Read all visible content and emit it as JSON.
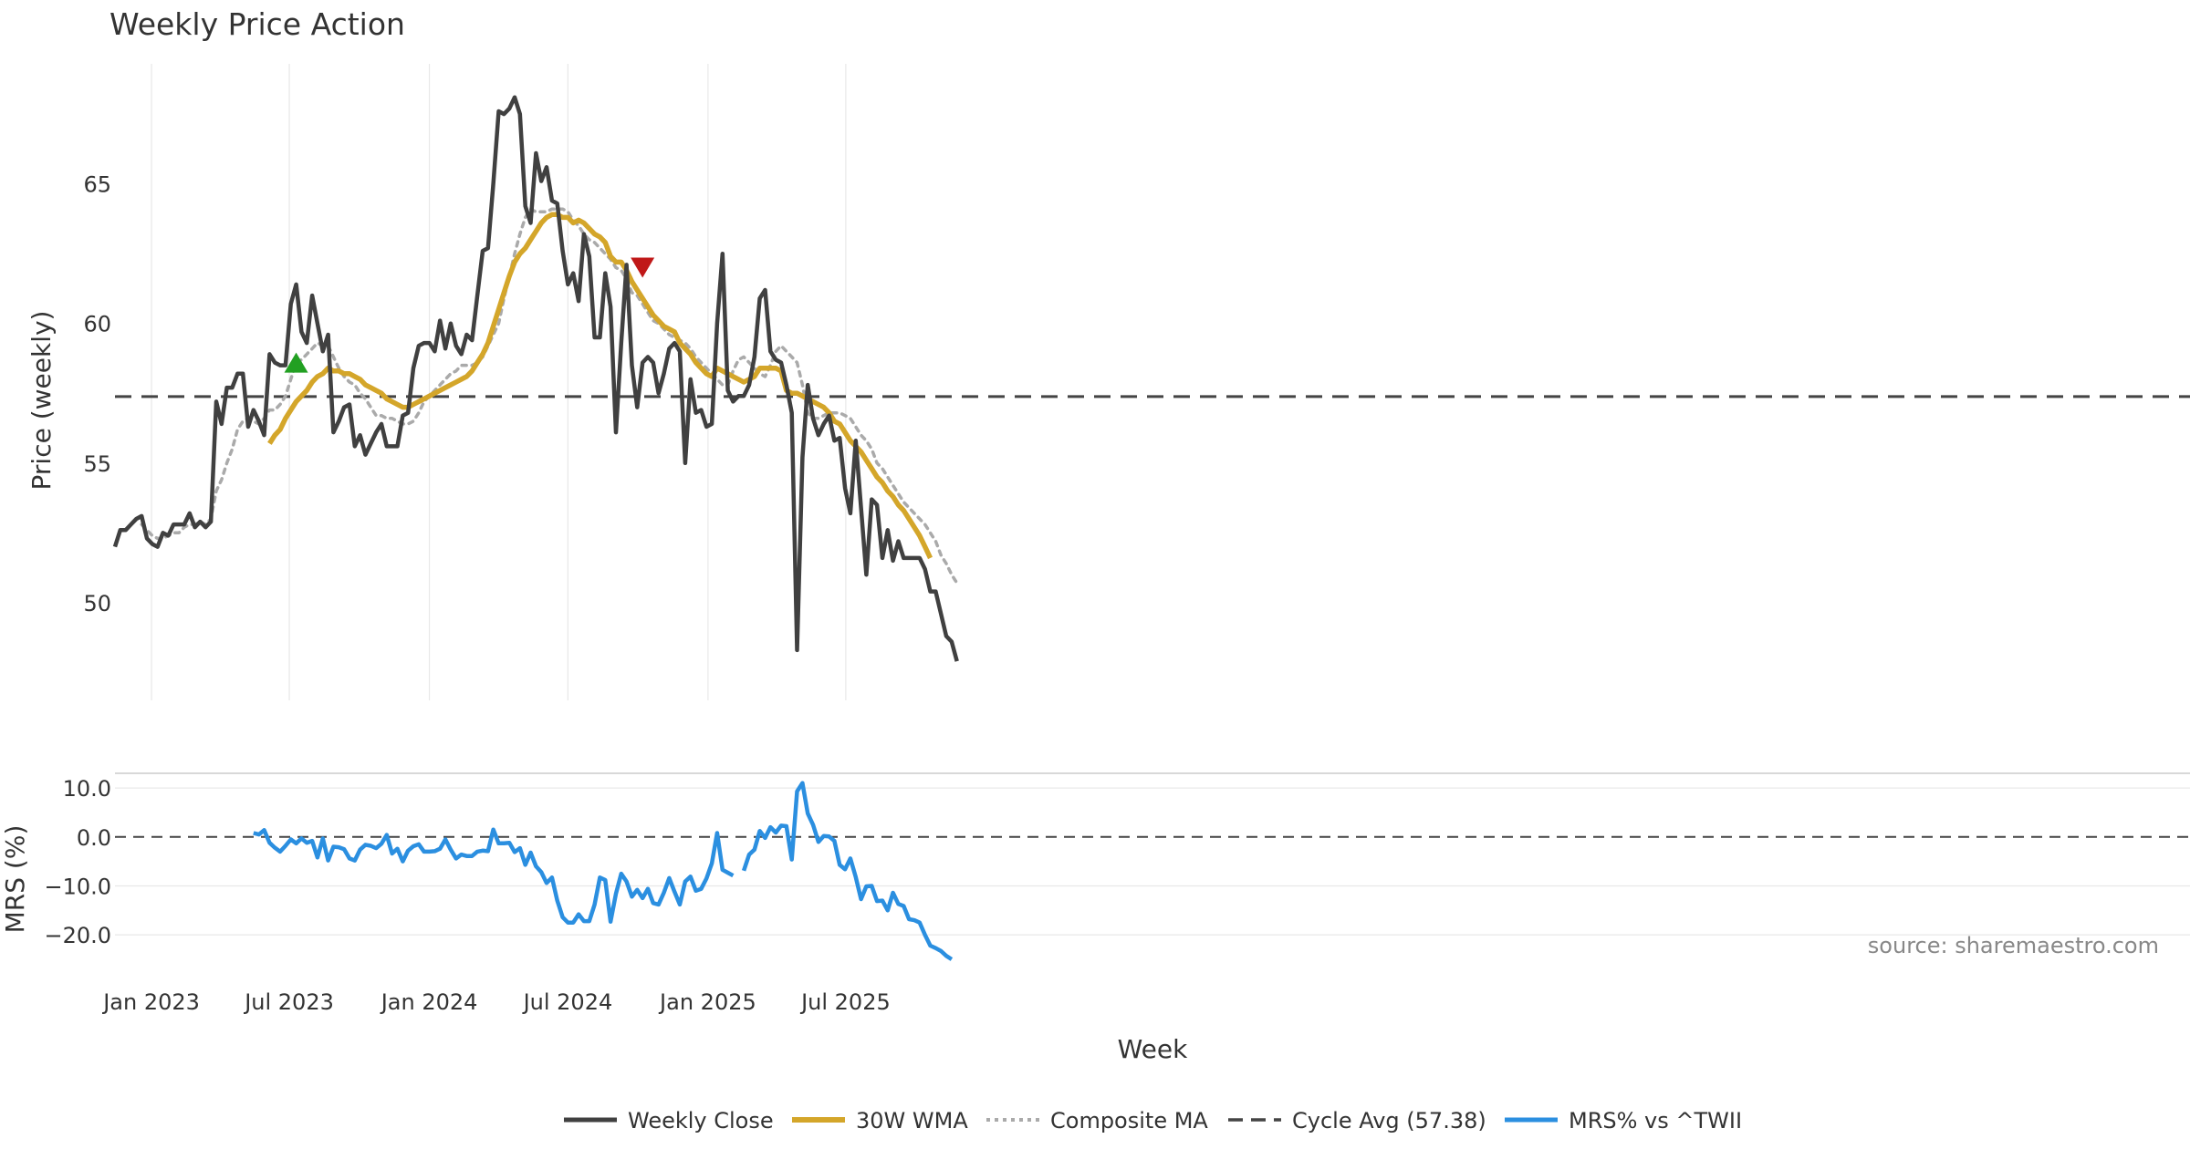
{
  "title": "Weekly Price Action",
  "source": "source: sharemaestro.com",
  "xlabel": "Week",
  "colors": {
    "close": "#404040",
    "wma": "#d4a62a",
    "composite": "#aaaaaa",
    "cycle": "#444444",
    "mrs": "#2b8fe0",
    "buy": "#22a022",
    "sell": "#c01818",
    "grid": "#e8e8e8",
    "text": "#333333",
    "source_text": "#888888"
  },
  "chart_data": {
    "type": "line",
    "x_axis": {
      "label": "Week",
      "start_date": "2022-11-14",
      "tick_labels": [
        "Jan 2023",
        "Jul 2023",
        "Jan 2024",
        "Jul 2024",
        "Jan 2025",
        "Jul 2025"
      ],
      "tick_dates": [
        "2023-01-01",
        "2023-07-01",
        "2024-01-01",
        "2024-07-01",
        "2025-01-01",
        "2025-07-01"
      ]
    },
    "price_panel": {
      "ylabel": "Price (weekly)",
      "ylim": [
        46.5,
        69.3
      ],
      "yticks": [
        50,
        55,
        60,
        65
      ],
      "cycle_avg": 57.38,
      "series": [
        {
          "name": "Weekly Close",
          "key": "close",
          "start_index": 0,
          "values": [
            52.0,
            52.6,
            52.6,
            52.8,
            53.0,
            53.1,
            52.3,
            52.1,
            52.0,
            52.5,
            52.4,
            52.8,
            52.8,
            52.8,
            53.2,
            52.7,
            52.9,
            52.7,
            52.9,
            57.2,
            56.4,
            57.7,
            57.7,
            58.2,
            58.2,
            56.3,
            56.9,
            56.5,
            56.0,
            58.9,
            58.6,
            58.5,
            58.5,
            60.7,
            61.4,
            59.7,
            59.3,
            61.0,
            60.0,
            59.0,
            59.6,
            56.1,
            56.5,
            57.0,
            57.1,
            55.6,
            56.0,
            55.3,
            55.7,
            56.1,
            56.4,
            55.6,
            55.6,
            55.6,
            56.7,
            56.8,
            58.4,
            59.2,
            59.3,
            59.3,
            59.0,
            60.1,
            59.1,
            60.0,
            59.2,
            58.9,
            59.6,
            59.4,
            61.0,
            62.6,
            62.7,
            65.0,
            67.6,
            67.5,
            67.7,
            68.1,
            67.5,
            64.2,
            63.6,
            66.1,
            65.1,
            65.6,
            64.4,
            64.3,
            62.6,
            61.4,
            61.8,
            60.8,
            63.2,
            62.4,
            59.5,
            59.5,
            61.8,
            60.6,
            56.1,
            59.3,
            62.1,
            58.5,
            57.0,
            58.6,
            58.8,
            58.6,
            57.5,
            58.2,
            59.1,
            59.3,
            59.0,
            55.0,
            58.0,
            56.8,
            56.9,
            56.3,
            56.4,
            60.0,
            62.5,
            57.6,
            57.2,
            57.4,
            57.4,
            57.8,
            58.8,
            60.9,
            61.2,
            59.0,
            58.7,
            58.6,
            57.8,
            56.8,
            48.3,
            55.2,
            57.8,
            56.6,
            56.0,
            56.4,
            56.7,
            55.8,
            55.9,
            54.1,
            53.2,
            55.8,
            53.4,
            51.0,
            53.7,
            53.5,
            51.6,
            52.6,
            51.5,
            52.2,
            51.6,
            51.6,
            51.6,
            51.6,
            51.2,
            50.4,
            50.4,
            49.6,
            48.8,
            48.6,
            47.9
          ]
        },
        {
          "name": "30W WMA",
          "key": "wma",
          "start_index": 29,
          "values": [
            55.7,
            56.0,
            56.2,
            56.6,
            56.9,
            57.2,
            57.4,
            57.6,
            57.9,
            58.1,
            58.2,
            58.4,
            58.3,
            58.3,
            58.2,
            58.2,
            58.1,
            58.0,
            57.8,
            57.7,
            57.6,
            57.5,
            57.3,
            57.2,
            57.1,
            57.0,
            57.0,
            57.1,
            57.2,
            57.3,
            57.4,
            57.5,
            57.6,
            57.7,
            57.8,
            57.9,
            58.0,
            58.1,
            58.3,
            58.6,
            58.9,
            59.3,
            59.9,
            60.5,
            61.1,
            61.7,
            62.2,
            62.5,
            62.7,
            63.0,
            63.3,
            63.6,
            63.8,
            63.9,
            63.9,
            63.8,
            63.8,
            63.6,
            63.7,
            63.6,
            63.4,
            63.2,
            63.1,
            62.9,
            62.4,
            62.2,
            62.2,
            61.9,
            61.5,
            61.2,
            60.9,
            60.6,
            60.3,
            60.1,
            59.9,
            59.8,
            59.7,
            59.3,
            59.1,
            58.9,
            58.6,
            58.4,
            58.2,
            58.1,
            58.4,
            58.3,
            58.2,
            58.1,
            58.0,
            57.9,
            58.0,
            58.1,
            58.4,
            58.4,
            58.4,
            58.4,
            58.3,
            57.6,
            57.5,
            57.5,
            57.4,
            57.3,
            57.2,
            57.1,
            57.0,
            56.8,
            56.5,
            56.4,
            56.1,
            55.8,
            55.6,
            55.4,
            55.1,
            54.8,
            54.5,
            54.3,
            54.0,
            53.8,
            53.5,
            53.3,
            53.0,
            52.7,
            52.4,
            52.0,
            51.6
          ]
        },
        {
          "name": "Composite MA",
          "key": "composite",
          "start_index": 5,
          "values": [
            52.8,
            52.6,
            52.4,
            52.3,
            52.3,
            52.4,
            52.5,
            52.5,
            52.7,
            52.8,
            52.8,
            52.9,
            52.8,
            53.0,
            54.0,
            54.4,
            55.0,
            55.5,
            56.2,
            56.5,
            56.6,
            56.5,
            56.4,
            56.6,
            56.9,
            56.9,
            57.1,
            57.4,
            58.0,
            58.6,
            58.7,
            58.9,
            59.1,
            59.3,
            59.2,
            59.2,
            58.8,
            58.4,
            58.1,
            57.9,
            57.8,
            57.5,
            57.3,
            57.0,
            56.7,
            56.7,
            56.6,
            56.6,
            56.5,
            56.4,
            56.4,
            56.5,
            56.8,
            57.2,
            57.4,
            57.6,
            57.8,
            58.0,
            58.2,
            58.3,
            58.5,
            58.5,
            58.5,
            58.6,
            58.8,
            59.2,
            59.6,
            60.0,
            60.9,
            61.7,
            62.5,
            63.2,
            63.8,
            64.1,
            64.0,
            64.0,
            64.0,
            64.1,
            64.1,
            64.1,
            64.0,
            63.7,
            63.5,
            63.2,
            63.0,
            62.9,
            62.7,
            62.5,
            62.3,
            62.0,
            61.9,
            61.6,
            61.1,
            61.0,
            60.7,
            60.4,
            60.1,
            60.0,
            59.8,
            59.6,
            59.5,
            59.4,
            59.3,
            59.1,
            58.8,
            58.6,
            58.4,
            58.2,
            58.0,
            57.8,
            57.8,
            58.3,
            58.7,
            58.8,
            58.6,
            58.4,
            58.2,
            58.1,
            58.5,
            59.0,
            59.2,
            59.0,
            58.8,
            58.6,
            57.8,
            56.8,
            56.6,
            56.6,
            56.7,
            56.8,
            56.8,
            56.8,
            56.7,
            56.6,
            56.3,
            56.0,
            55.8,
            55.5,
            55.0,
            54.8,
            54.5,
            54.2,
            53.9,
            53.6,
            53.4,
            53.2,
            53.0,
            52.8,
            52.5,
            52.2,
            51.7,
            51.4,
            51.0,
            50.7
          ]
        }
      ],
      "markers": [
        {
          "type": "buy",
          "index": 34,
          "value": 58.6,
          "shape": "triangle-up"
        },
        {
          "type": "sell",
          "index": 99,
          "value": 62.0,
          "shape": "triangle-down"
        }
      ]
    },
    "mrs_panel": {
      "ylabel": "MRS (%)",
      "ylim": [
        -25,
        13
      ],
      "yticks": [
        10.0,
        0.0,
        -10.0,
        -20.0
      ],
      "ytick_labels": [
        "10.0",
        "0.0",
        "−10.0",
        "−20.0"
      ],
      "zero_line": 0,
      "series": [
        {
          "name": "MRS% vs ^TWII",
          "key": "mrs",
          "segments": [
            {
              "start_index": 26,
              "values": [
                0.8,
                0.5,
                1.4,
                -1.2,
                -2.2,
                -3.0,
                -1.8,
                -0.5,
                -1.3,
                -0.3,
                -1.2,
                -0.8,
                -4.2,
                -0.3,
                -4.8,
                -2.0,
                -2.1,
                -2.5,
                -4.4,
                -4.8,
                -2.6,
                -1.6,
                -1.8,
                -2.3,
                -1.4,
                0.4,
                -3.4,
                -2.4,
                -5.0,
                -2.8,
                -1.9,
                -1.5,
                -3.0,
                -3.0,
                -2.9,
                -2.4,
                -0.5,
                -2.6,
                -4.4,
                -3.6,
                -3.9,
                -3.9,
                -3.0,
                -2.8,
                -2.9,
                1.5,
                -1.3,
                -1.3,
                -1.2,
                -3.1,
                -2.3,
                -5.7,
                -3.2,
                -6.0,
                -7.2,
                -9.4,
                -8.3,
                -13.0,
                -16.4,
                -17.5,
                -17.5,
                -15.8,
                -17.2,
                -17.2,
                -13.8,
                -8.3,
                -8.8,
                -17.3,
                -11.6,
                -7.5,
                -9.1,
                -12.2,
                -10.8,
                -12.5,
                -10.6,
                -13.5,
                -13.8,
                -11.4,
                -8.4,
                -11.2,
                -13.8,
                -9.1,
                -8.1,
                -11.0,
                -10.6,
                -8.5,
                -5.4,
                0.8,
                -6.7,
                -7.3,
                -7.9
              ]
            },
            {
              "start_index": 118,
              "values": [
                -6.9,
                -3.6,
                -2.6,
                1.2,
                -0.2,
                2.0,
                0.9,
                2.3,
                2.2,
                -4.6,
                9.3,
                11.0,
                4.8,
                2.5,
                -1.0,
                0.2,
                0.1,
                -0.8,
                -5.7,
                -6.6,
                -4.4,
                -8.2,
                -12.7,
                -10.1,
                -10.0,
                -13.1,
                -13.0,
                -15.0,
                -11.4,
                -13.7,
                -14.1,
                -16.8,
                -17.0,
                -17.5,
                -20.0,
                -22.2,
                -22.7,
                -23.3,
                -24.3,
                -25.0
              ]
            }
          ]
        }
      ]
    },
    "legend": {
      "position": "bottom-center",
      "entries": [
        {
          "label": "Weekly Close",
          "key": "close",
          "style": "solid"
        },
        {
          "label": "30W WMA",
          "key": "wma",
          "style": "solid"
        },
        {
          "label": "Composite MA",
          "key": "composite",
          "style": "dotted"
        },
        {
          "label": "Cycle Avg (57.38)",
          "key": "cycle",
          "style": "dashed"
        },
        {
          "label": "MRS% vs ^TWII",
          "key": "mrs",
          "style": "solid"
        }
      ]
    }
  }
}
